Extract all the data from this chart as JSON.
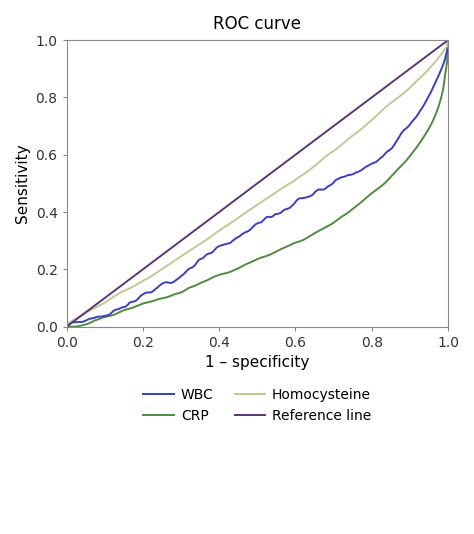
{
  "title": "ROC curve",
  "xlabel": "1 – specificity",
  "ylabel": "Sensitivity",
  "xlim": [
    0.0,
    1.0
  ],
  "ylim": [
    0.0,
    1.0
  ],
  "xticks": [
    0.0,
    0.2,
    0.4,
    0.6,
    0.8,
    1.0
  ],
  "yticks": [
    0.0,
    0.2,
    0.4,
    0.6,
    0.8,
    1.0
  ],
  "colors": {
    "WBC": "#3b3fc0",
    "CRP": "#4f8c3f",
    "Homocysteine": "#c0c898",
    "Reference": "#5c3575"
  },
  "background_color": "#ffffff",
  "title_fontsize": 12,
  "label_fontsize": 11,
  "tick_fontsize": 10,
  "legend_fontsize": 10,
  "linewidth": 1.4
}
